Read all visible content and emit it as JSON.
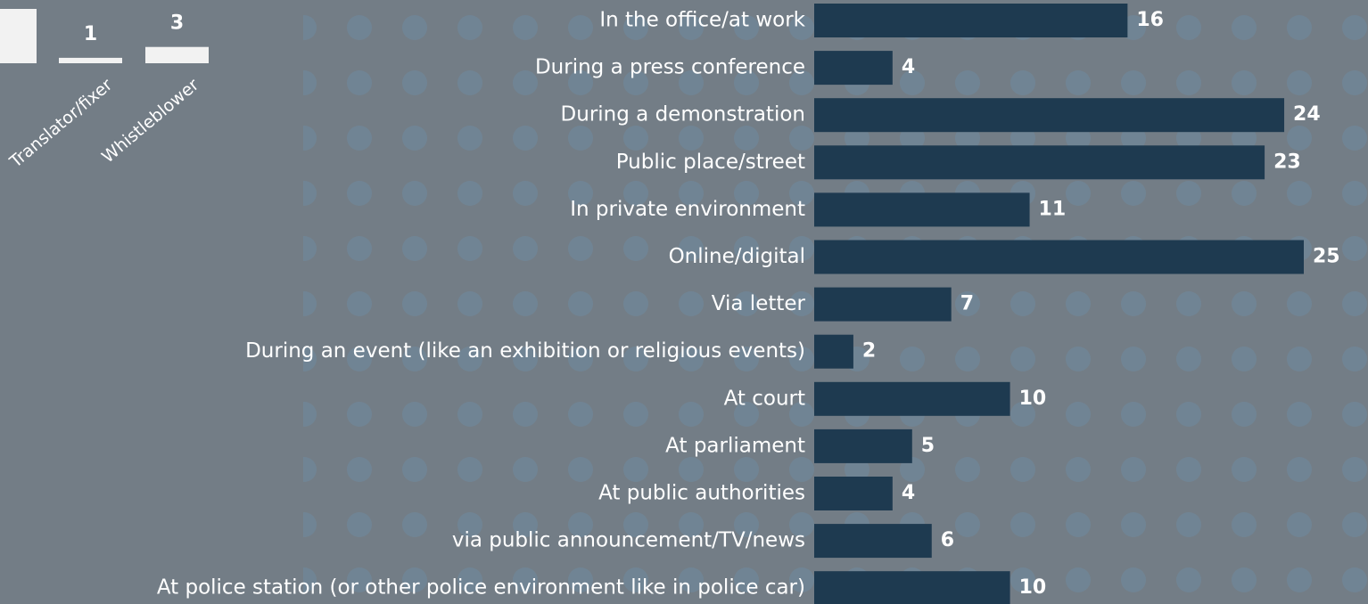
{
  "chart_data": [
    {
      "type": "hbar",
      "categories": [
        "In the office/at work",
        "During a press conference",
        "During a demonstration",
        "Public place/street",
        "In private environment",
        "Online/digital",
        "Via letter",
        "During an event (like an exhibition or religious events)",
        "At court",
        "At parliament",
        "At public authorities",
        "via public announcement/TV/news",
        "At police station (or other police environment like in police car)"
      ],
      "values": [
        16,
        4,
        24,
        23,
        11,
        25,
        7,
        2,
        10,
        5,
        4,
        6,
        10
      ],
      "color": "#1e3a50"
    },
    {
      "type": "bar",
      "categories": [
        null,
        "Translator/fixer",
        "Whistleblower"
      ],
      "values": [
        10,
        1,
        3
      ],
      "color": "#f2f2f2"
    }
  ]
}
